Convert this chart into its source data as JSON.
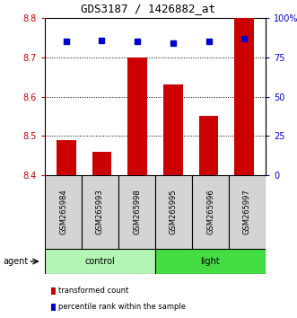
{
  "title": "GDS3187 / 1426882_at",
  "samples": [
    "GSM265984",
    "GSM265993",
    "GSM265998",
    "GSM265995",
    "GSM265996",
    "GSM265997"
  ],
  "bar_values": [
    8.49,
    8.46,
    8.7,
    8.63,
    8.55,
    8.8
  ],
  "percentile_values": [
    85,
    86,
    85,
    84,
    85,
    87
  ],
  "ylim": [
    8.4,
    8.8
  ],
  "y_ticks_left": [
    8.4,
    8.5,
    8.6,
    8.7,
    8.8
  ],
  "y_ticks_right": [
    0,
    25,
    50,
    75,
    100
  ],
  "groups": [
    {
      "label": "control",
      "indices": [
        0,
        1,
        2
      ],
      "color": "#b3f5b3"
    },
    {
      "label": "light",
      "indices": [
        3,
        4,
        5
      ],
      "color": "#44dd44"
    }
  ],
  "bar_color": "#cc0000",
  "percentile_color": "#0000cc",
  "bar_width": 0.55,
  "bg_color": "#ffffff",
  "legend_items": [
    {
      "label": "transformed count",
      "color": "#cc0000"
    },
    {
      "label": "percentile rank within the sample",
      "color": "#0000cc"
    }
  ],
  "agent_label": "agent",
  "left_tick_color": "#cc0000",
  "right_tick_color": "#0000cc",
  "title_font": "monospace",
  "title_fontsize": 9
}
